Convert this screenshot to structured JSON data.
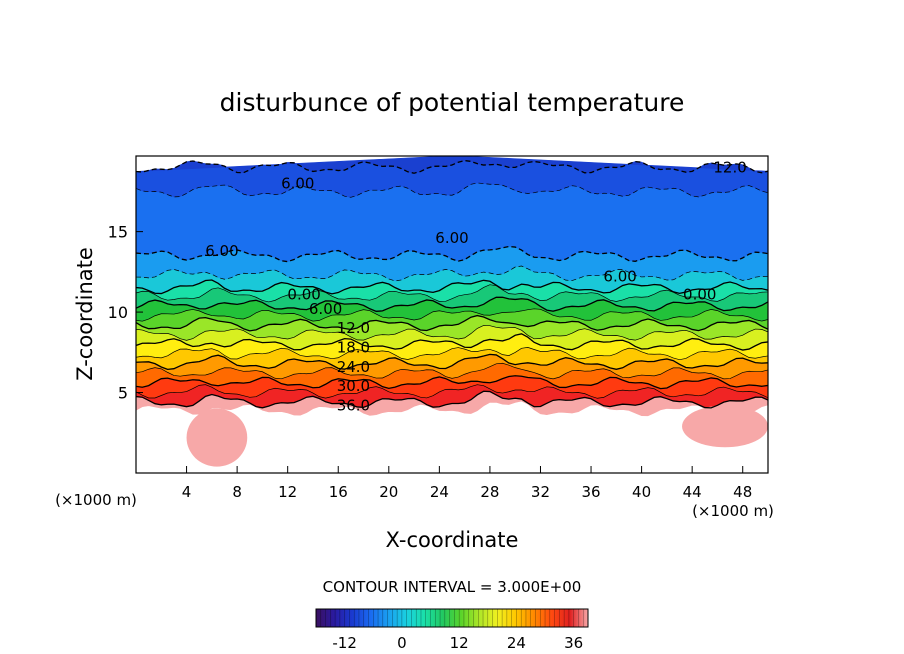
{
  "chart_data": {
    "type": "heatmap",
    "title": "disturbunce of potential temperature",
    "xlabel": "X-coordinate",
    "ylabel": "Z-coordinate",
    "x_unit": "(×1000 m)",
    "z_unit": "(×1000 m)",
    "xlim": [
      0,
      50
    ],
    "ylim": [
      0,
      19.7
    ],
    "x_ticks": [
      "4",
      "8",
      "12",
      "16",
      "20",
      "24",
      "28",
      "32",
      "36",
      "40",
      "44",
      "48"
    ],
    "y_ticks": [
      "5",
      "10",
      "15"
    ],
    "contour_interval_text": "CONTOUR INTERVAL = 3.000E+00",
    "contour_labels": [
      {
        "text": "12.0",
        "x": 47.0,
        "z": 19.0
      },
      {
        "text": "6.00",
        "x": 12.8,
        "z": 18.0
      },
      {
        "text": "6.00",
        "x": 6.8,
        "z": 13.8
      },
      {
        "text": "6.00",
        "x": 25.0,
        "z": 14.6
      },
      {
        "text": "6.00",
        "x": 38.3,
        "z": 12.2
      },
      {
        "text": "0.00",
        "x": 13.3,
        "z": 11.1
      },
      {
        "text": "0.00",
        "x": 44.6,
        "z": 11.1
      },
      {
        "text": "6.00",
        "x": 15.0,
        "z": 10.2
      },
      {
        "text": "12.0",
        "x": 17.2,
        "z": 9.0
      },
      {
        "text": "18.0",
        "x": 17.2,
        "z": 7.8
      },
      {
        "text": "24.0",
        "x": 17.2,
        "z": 6.6
      },
      {
        "text": "30.0",
        "x": 17.2,
        "z": 5.4
      },
      {
        "text": "36.0",
        "x": 17.2,
        "z": 4.2
      }
    ],
    "layers": [
      {
        "z_bottom": 3.9,
        "value": 39,
        "color": "#f7a8a8"
      },
      {
        "z_bottom": 4.4,
        "value": 36,
        "color": "#f02424"
      },
      {
        "z_bottom": 5.0,
        "value": 33,
        "color": "#ff3a10"
      },
      {
        "z_bottom": 5.6,
        "value": 30,
        "color": "#ff6a00"
      },
      {
        "z_bottom": 6.2,
        "value": 27,
        "color": "#ff9a00"
      },
      {
        "z_bottom": 6.8,
        "value": 24,
        "color": "#ffc800"
      },
      {
        "z_bottom": 7.4,
        "value": 21,
        "color": "#ffee10"
      },
      {
        "z_bottom": 8.0,
        "value": 18,
        "color": "#d8f020"
      },
      {
        "z_bottom": 8.6,
        "value": 15,
        "color": "#9ae628"
      },
      {
        "z_bottom": 9.2,
        "value": 12,
        "color": "#5ad42a"
      },
      {
        "z_bottom": 9.8,
        "value": 9,
        "color": "#22c23a"
      },
      {
        "z_bottom": 10.4,
        "value": 6,
        "color": "#18c878"
      },
      {
        "z_bottom": 11.0,
        "value": 3,
        "color": "#1ae0a8"
      },
      {
        "z_bottom": 11.5,
        "value": 0,
        "color": "#1ac8d8"
      },
      {
        "z_bottom": 12.3,
        "value": -3,
        "color": "#1a9cf0"
      },
      {
        "z_bottom": 13.5,
        "value": -6,
        "color": "#1a70f0"
      },
      {
        "z_bottom": 17.5,
        "value": -9,
        "color": "#1a50e0"
      },
      {
        "z_bottom": 19.0,
        "value": -12,
        "color": "#1a40d0"
      }
    ],
    "pink_blobs": [
      {
        "x_center": 6.4,
        "z_center": 2.2,
        "x_radius": 2.4,
        "z_radius": 1.8
      },
      {
        "x_center": 46.6,
        "z_center": 2.9,
        "x_radius": 3.4,
        "z_radius": 1.3
      }
    ],
    "colorbar": {
      "min": -18,
      "max": 39,
      "ticks": [
        -12,
        0,
        12,
        24,
        36
      ],
      "tick_labels": [
        "-12",
        "0",
        "12",
        "24",
        "36"
      ],
      "colors": [
        "#3a1060",
        "#2a1aa0",
        "#1a3ad0",
        "#1a6af0",
        "#1aa0f0",
        "#1ad0e0",
        "#1ae0a8",
        "#22c860",
        "#5ad42a",
        "#aee628",
        "#f0f020",
        "#ffc800",
        "#ff8a00",
        "#ff4a10",
        "#e02020",
        "#f7a8a8"
      ]
    }
  }
}
